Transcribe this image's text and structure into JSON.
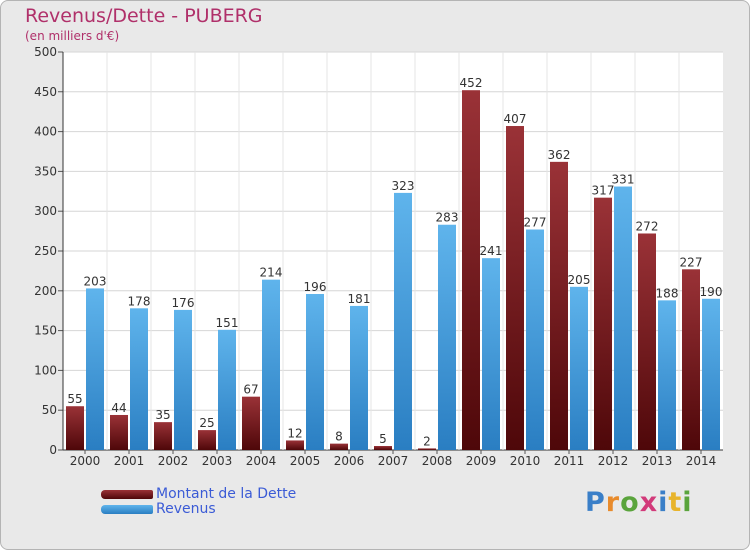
{
  "chart_data": {
    "type": "bar",
    "title": "Revenus/Dette - PUBERG",
    "subtitle": "(en milliers d'€)",
    "categories": [
      "2000",
      "2001",
      "2002",
      "2003",
      "2004",
      "2005",
      "2006",
      "2007",
      "2008",
      "2009",
      "2010",
      "2011",
      "2012",
      "2013",
      "2014"
    ],
    "series": [
      {
        "name": "Montant de la Dette",
        "color": "#7b1418",
        "values": [
          55,
          44,
          35,
          25,
          67,
          12,
          8,
          5,
          2,
          452,
          407,
          362,
          317,
          272,
          227
        ]
      },
      {
        "name": "Revenus",
        "color": "#3b98dc",
        "values": [
          203,
          178,
          176,
          151,
          214,
          196,
          181,
          323,
          283,
          241,
          277,
          205,
          331,
          188,
          190
        ]
      }
    ],
    "ylim": [
      0,
      500
    ],
    "yticks": [
      0,
      50,
      100,
      150,
      200,
      250,
      300,
      350,
      400,
      450,
      500
    ],
    "grid": true,
    "legend": "bottom-left"
  },
  "brand": {
    "logo_letters": [
      "P",
      "r",
      "o",
      "x",
      "i",
      "t",
      "i"
    ],
    "logo_colors": [
      "#3a7fc8",
      "#e88b2c",
      "#5aa43c",
      "#d23a7a",
      "#3a7fc8",
      "#e8b42c",
      "#5aa43c"
    ]
  }
}
